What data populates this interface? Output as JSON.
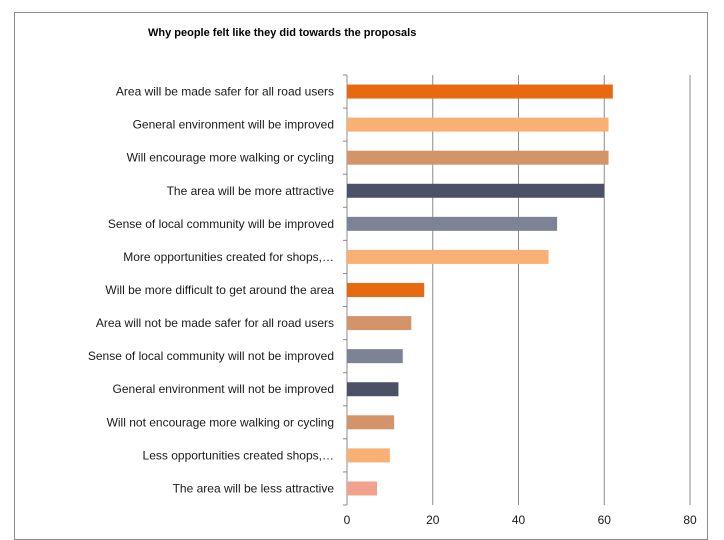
{
  "chart_data": {
    "type": "bar",
    "orientation": "horizontal",
    "title": "Why people felt like they did towards the proposals",
    "xlabel": "",
    "ylabel": "",
    "xlim": [
      0,
      80
    ],
    "xticks": [
      0,
      20,
      40,
      60,
      80
    ],
    "grid": true,
    "legend": "none",
    "categories": [
      "Area will be made safer for all road users",
      "General environment will be improved",
      "Will encourage more walking or cycling",
      "The area will be more attractive",
      "Sense of local community will be improved",
      "More opportunities created for shops,…",
      "Will be more difficult to get around the area",
      "Area will not be made safer for all road users",
      "Sense of local community will not be improved",
      "General environment will not be improved",
      "Will not encourage more walking or cycling",
      "Less opportunities created shops,…",
      "The area will be less attractive"
    ],
    "values": [
      62,
      61,
      61,
      60,
      49,
      47,
      18,
      15,
      13,
      12,
      11,
      10,
      7
    ],
    "colors": [
      "#e8690f",
      "#f9b074",
      "#d4946a",
      "#4d5168",
      "#7d8294",
      "#f9b074",
      "#e8690f",
      "#d4946a",
      "#7d8294",
      "#4d5168",
      "#d4946a",
      "#f9b074",
      "#f0a28e"
    ]
  }
}
